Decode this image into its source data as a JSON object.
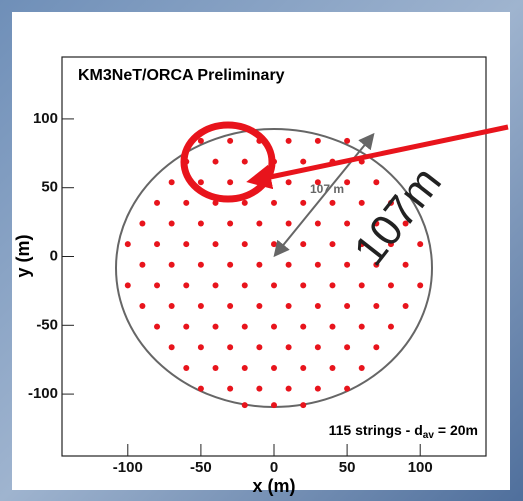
{
  "chart_data": {
    "type": "scatter",
    "title": "KM3NeT/ORCA Preliminary",
    "x_label": "x (m)",
    "y_label": "y (m)",
    "annotation": {
      "text": "115 strings - d",
      "subscript": "av",
      "suffix": "= 20m"
    },
    "distance_label": "107 m",
    "big_label": "107m",
    "color": "#e8141c",
    "xlim": [
      -145,
      145
    ],
    "ylim": [
      -145,
      145
    ],
    "xticks": [
      -100,
      -50,
      0,
      50,
      100
    ],
    "yticks": [
      -100,
      -50,
      0,
      50,
      100
    ],
    "x": [
      -50,
      -30,
      -10,
      10,
      30,
      50,
      -60,
      -40,
      -20,
      0,
      20,
      40,
      60,
      -70,
      -50,
      -30,
      -10,
      10,
      30,
      50,
      70,
      -80,
      -60,
      -40,
      -20,
      0,
      20,
      40,
      60,
      80,
      -90,
      -70,
      -50,
      -30,
      -10,
      10,
      30,
      50,
      70,
      90,
      -100,
      -80,
      -60,
      -40,
      -20,
      0,
      20,
      40,
      60,
      80,
      100,
      -90,
      -70,
      -50,
      -30,
      -10,
      10,
      30,
      50,
      70,
      90,
      -100,
      -80,
      -60,
      -40,
      -20,
      0,
      20,
      40,
      60,
      80,
      100,
      -90,
      -70,
      -50,
      -30,
      -10,
      10,
      30,
      50,
      70,
      90,
      -80,
      -60,
      -40,
      -20,
      0,
      20,
      40,
      60,
      80,
      -70,
      -50,
      -30,
      -10,
      10,
      30,
      50,
      70,
      -60,
      -40,
      -20,
      0,
      20,
      40,
      60,
      -50,
      -30,
      -10,
      10,
      30,
      50,
      -20,
      0,
      20
    ],
    "y": [
      84,
      84,
      84,
      84,
      84,
      84,
      69,
      69,
      69,
      69,
      69,
      69,
      69,
      54,
      54,
      54,
      54,
      54,
      54,
      54,
      54,
      39,
      39,
      39,
      39,
      39,
      39,
      39,
      39,
      39,
      24,
      24,
      24,
      24,
      24,
      24,
      24,
      24,
      24,
      24,
      9,
      9,
      9,
      9,
      9,
      9,
      9,
      9,
      9,
      9,
      9,
      -6,
      -6,
      -6,
      -6,
      -6,
      -6,
      -6,
      -6,
      -6,
      -6,
      -21,
      -21,
      -21,
      -21,
      -21,
      -21,
      -21,
      -21,
      -21,
      -21,
      -21,
      -36,
      -36,
      -36,
      -36,
      -36,
      -36,
      -36,
      -36,
      -36,
      -36,
      -51,
      -51,
      -51,
      -51,
      -51,
      -51,
      -51,
      -51,
      -51,
      -66,
      -66,
      -66,
      -66,
      -66,
      -66,
      -66,
      -66,
      -81,
      -81,
      -81,
      -81,
      -81,
      -81,
      -81,
      -96,
      -96,
      -96,
      -96,
      -96,
      -96,
      -108,
      -108,
      -108
    ]
  }
}
